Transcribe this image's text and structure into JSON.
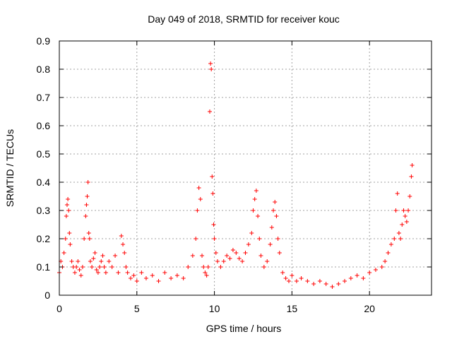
{
  "chart_data": {
    "type": "scatter",
    "title": "Day 049 of 2018, SRMTID for receiver kouc",
    "xlabel": "GPS time / hours",
    "ylabel": "SRMTID / TECUs",
    "xlim": [
      0,
      24
    ],
    "ylim": [
      0,
      0.9
    ],
    "x_ticks": [
      0,
      5,
      10,
      15,
      20
    ],
    "x_tick_labels": [
      "0",
      "5",
      "10",
      "15",
      "20"
    ],
    "y_ticks": [
      0,
      0.1,
      0.2,
      0.3,
      0.4,
      0.5,
      0.6,
      0.7,
      0.8,
      0.9
    ],
    "y_tick_labels": [
      "0",
      "0.1",
      "0.2",
      "0.3",
      "0.4",
      "0.5",
      "0.6",
      "0.7",
      "0.8",
      "0.9"
    ],
    "grid": true,
    "marker": "+",
    "color": "#ff0000",
    "series": [
      {
        "name": "SRMTID",
        "x": [
          0.0,
          0.1,
          0.2,
          0.3,
          0.4,
          0.45,
          0.5,
          0.55,
          0.6,
          0.65,
          0.7,
          0.8,
          0.9,
          1.0,
          1.1,
          1.2,
          1.3,
          1.4,
          1.5,
          1.6,
          1.7,
          1.75,
          1.8,
          1.85,
          1.9,
          1.95,
          2.0,
          2.1,
          2.2,
          2.3,
          2.4,
          2.5,
          2.6,
          2.7,
          2.8,
          2.9,
          3.0,
          3.2,
          3.4,
          3.6,
          3.8,
          4.0,
          4.1,
          4.2,
          4.3,
          4.4,
          4.6,
          4.8,
          5.0,
          5.3,
          5.6,
          6.0,
          6.4,
          6.8,
          7.2,
          7.6,
          8.0,
          8.3,
          8.6,
          8.8,
          8.9,
          9.0,
          9.1,
          9.2,
          9.3,
          9.4,
          9.5,
          9.6,
          9.7,
          9.75,
          9.8,
          9.85,
          9.9,
          9.95,
          10.0,
          10.1,
          10.2,
          10.4,
          10.6,
          10.8,
          11.0,
          11.2,
          11.4,
          11.6,
          11.8,
          12.0,
          12.2,
          12.4,
          12.5,
          12.6,
          12.7,
          12.8,
          12.9,
          13.0,
          13.2,
          13.4,
          13.6,
          13.7,
          13.8,
          13.9,
          14.0,
          14.1,
          14.2,
          14.4,
          14.6,
          14.8,
          15.0,
          15.3,
          15.6,
          16.0,
          16.4,
          16.8,
          17.2,
          17.6,
          18.0,
          18.4,
          18.8,
          19.2,
          19.6,
          20.0,
          20.4,
          20.8,
          21.0,
          21.2,
          21.4,
          21.6,
          21.7,
          21.8,
          21.9,
          22.0,
          22.1,
          22.2,
          22.3,
          22.4,
          22.5,
          22.6,
          22.7,
          22.75
        ],
        "y": [
          0.08,
          0.12,
          0.1,
          0.15,
          0.2,
          0.28,
          0.32,
          0.34,
          0.3,
          0.22,
          0.18,
          0.12,
          0.1,
          0.08,
          0.1,
          0.12,
          0.09,
          0.07,
          0.1,
          0.2,
          0.28,
          0.32,
          0.35,
          0.4,
          0.22,
          0.2,
          0.12,
          0.1,
          0.13,
          0.15,
          0.09,
          0.08,
          0.1,
          0.12,
          0.14,
          0.1,
          0.08,
          0.12,
          0.1,
          0.14,
          0.08,
          0.21,
          0.18,
          0.15,
          0.1,
          0.08,
          0.06,
          0.07,
          0.05,
          0.08,
          0.06,
          0.07,
          0.05,
          0.08,
          0.06,
          0.07,
          0.06,
          0.1,
          0.14,
          0.2,
          0.3,
          0.38,
          0.34,
          0.14,
          0.1,
          0.08,
          0.07,
          0.1,
          0.65,
          0.82,
          0.8,
          0.42,
          0.36,
          0.25,
          0.2,
          0.15,
          0.12,
          0.1,
          0.12,
          0.14,
          0.13,
          0.16,
          0.15,
          0.13,
          0.12,
          0.15,
          0.18,
          0.22,
          0.3,
          0.34,
          0.37,
          0.28,
          0.2,
          0.14,
          0.1,
          0.12,
          0.18,
          0.24,
          0.3,
          0.33,
          0.28,
          0.2,
          0.15,
          0.08,
          0.06,
          0.05,
          0.07,
          0.05,
          0.06,
          0.05,
          0.04,
          0.05,
          0.04,
          0.03,
          0.04,
          0.05,
          0.06,
          0.07,
          0.06,
          0.08,
          0.09,
          0.1,
          0.12,
          0.15,
          0.18,
          0.2,
          0.3,
          0.36,
          0.22,
          0.2,
          0.25,
          0.3,
          0.28,
          0.26,
          0.3,
          0.35,
          0.42,
          0.46
        ]
      }
    ]
  }
}
